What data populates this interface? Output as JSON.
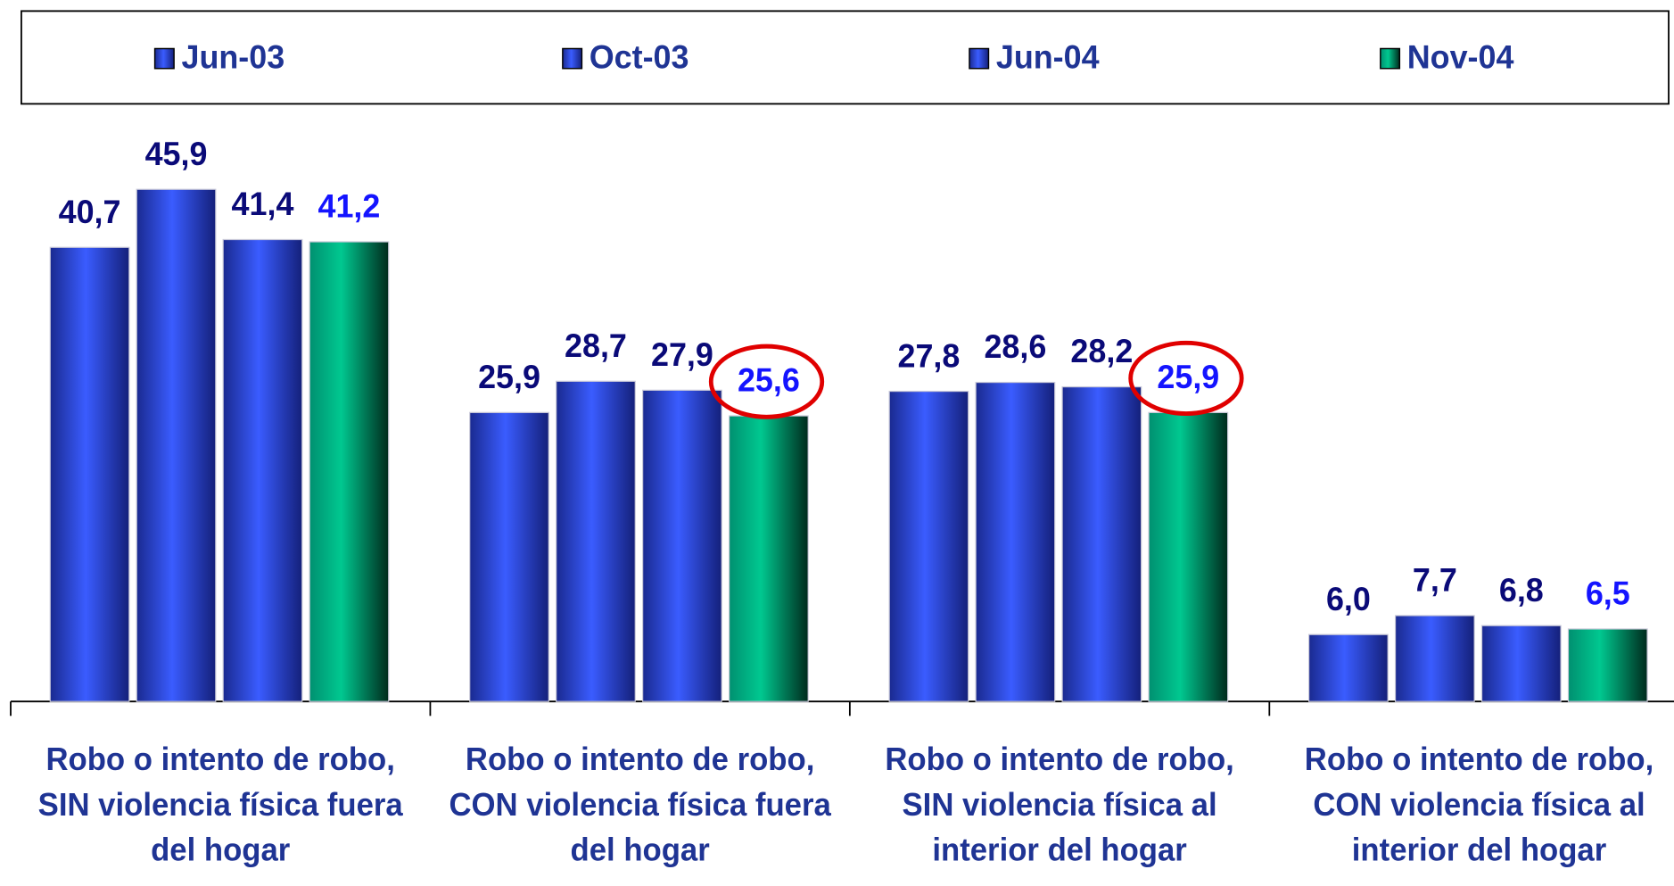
{
  "chart_data": {
    "type": "bar",
    "categories": [
      "Robo o intento de robo, SIN violencia física fuera del hogar",
      "Robo o intento de robo, CON violencia física fuera del hogar",
      "Robo o intento de robo, SIN violencia física al interior del hogar",
      "Robo o intento de robo, CON violencia física al interior del hogar"
    ],
    "series": [
      {
        "name": "Jun-03",
        "color": "#2a4de0",
        "values": [
          40.7,
          25.9,
          27.8,
          6.0
        ],
        "value_labels": [
          "40,7",
          "25,9",
          "27,8",
          "6,0"
        ]
      },
      {
        "name": "Oct-03",
        "color": "#2a4de0",
        "values": [
          45.9,
          28.7,
          28.6,
          7.7
        ],
        "value_labels": [
          "45,9",
          "28,7",
          "28,6",
          "7,7"
        ]
      },
      {
        "name": "Jun-04",
        "color": "#2a4de0",
        "values": [
          41.4,
          27.9,
          28.2,
          6.8
        ],
        "value_labels": [
          "41,4",
          "27,9",
          "28,2",
          "6,8"
        ]
      },
      {
        "name": "Nov-04",
        "color": "#00c08c",
        "values": [
          41.2,
          25.6,
          25.9,
          6.5
        ],
        "value_labels": [
          "41,2",
          "25,6",
          "25,9",
          "6,5"
        ]
      }
    ],
    "ylim": [
      0,
      50
    ],
    "legend": "top"
  }
}
